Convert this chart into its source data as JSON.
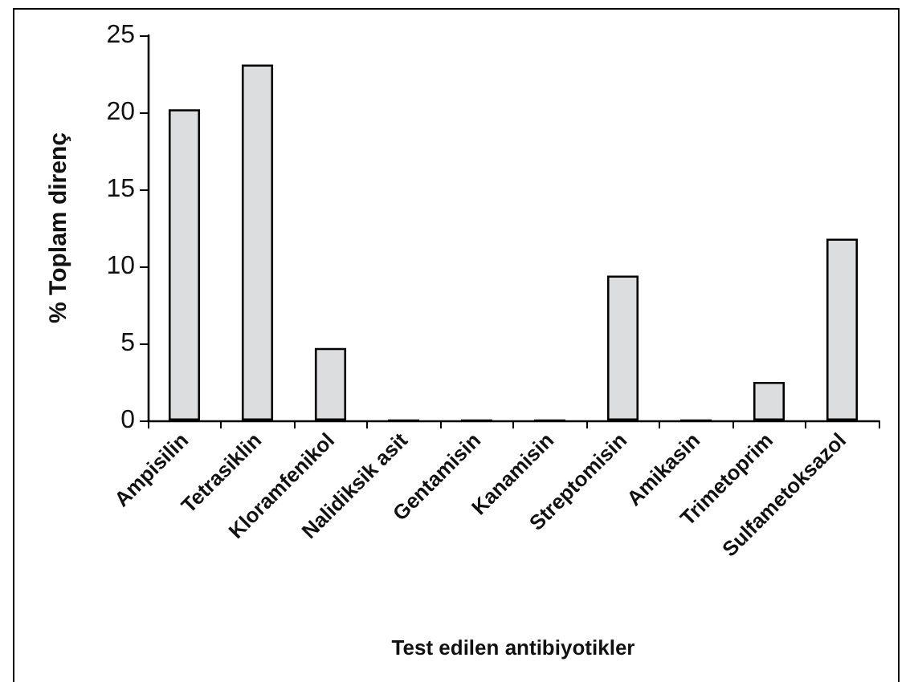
{
  "chart_data": {
    "type": "bar",
    "xlabel": "Test edilen antibiyotikler",
    "ylabel": "% Toplam direnç",
    "categories": [
      "Ampisilin",
      "Tetrasiklin",
      "Kloramfenikol",
      "Nalidiksik asit",
      "Gentamisin",
      "Kanamisin",
      "Streptomisin",
      "Amikasin",
      "Trimetoprim",
      "Sulfametoksazol"
    ],
    "values": [
      20.2,
      23.1,
      4.7,
      0,
      0,
      0,
      9.4,
      0,
      2.5,
      11.8
    ],
    "color": "#dcdddf",
    "ylim": [
      0,
      25
    ],
    "yticks": [
      0,
      5,
      10,
      15,
      20,
      25
    ],
    "grid": false
  }
}
